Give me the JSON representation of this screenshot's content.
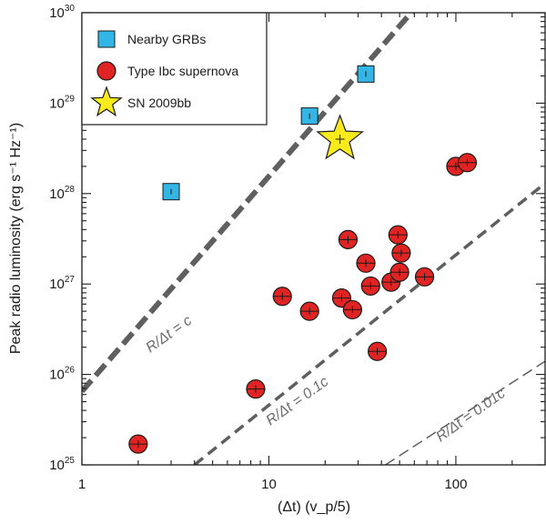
{
  "chart_data": {
    "type": "scatter",
    "xscale": "log",
    "yscale": "log",
    "xlim": [
      1,
      300
    ],
    "ylim": [
      1e+25,
      1e+30
    ],
    "xlabel": "(Δt) (v_p/5)",
    "ylabel": "Peak radio luminosity (erg s⁻¹ Hz⁻¹)",
    "x_ticks": [
      {
        "value": 1,
        "label": "1"
      },
      {
        "value": 10,
        "label": "10"
      },
      {
        "value": 100,
        "label": "100"
      }
    ],
    "y_ticks": [
      {
        "value": 1e+25,
        "base": "10",
        "exp": "25"
      },
      {
        "value": 1e+26,
        "base": "10",
        "exp": "26"
      },
      {
        "value": 1e+27,
        "base": "10",
        "exp": "27"
      },
      {
        "value": 1e+28,
        "base": "10",
        "exp": "28"
      },
      {
        "value": 1e+29,
        "base": "10",
        "exp": "29"
      },
      {
        "value": 1e+30,
        "base": "10",
        "exp": "30"
      }
    ],
    "reference_lines": [
      {
        "name": "R/Δt = c",
        "label": "R/Δt = c",
        "x": [
          1,
          60
        ],
        "y": [
          6.5e+25,
          1.1e+30
        ],
        "style": "bold-dashed"
      },
      {
        "name": "R/Δt = 0.1c",
        "label": "R/Δt = 0.1c",
        "x": [
          4.0,
          300
        ],
        "y": [
          1e+25,
          1.3e+28
        ],
        "style": "dashed"
      },
      {
        "name": "R/Δt = 0.01c",
        "label": "R/Δt = 0.01c",
        "x": [
          42,
          300
        ],
        "y": [
          1e+25,
          1.4e+26
        ],
        "style": "thin-dashed"
      }
    ],
    "series": [
      {
        "name": "Nearby GRBs",
        "marker": "square",
        "color": "#33b5e5",
        "points": [
          {
            "x": 3.0,
            "y": 1.05e+28
          },
          {
            "x": 16.5,
            "y": 7.2e+28
          },
          {
            "x": 33,
            "y": 2.1e+29
          }
        ]
      },
      {
        "name": "Type Ibc supernova",
        "marker": "circle",
        "color": "#e02424",
        "points": [
          {
            "x": 2.0,
            "y": 1.7e+25
          },
          {
            "x": 8.5,
            "y": 6.9e+25
          },
          {
            "x": 11.8,
            "y": 7.3e+26
          },
          {
            "x": 16.5,
            "y": 5e+26
          },
          {
            "x": 24.5,
            "y": 7e+26
          },
          {
            "x": 26.5,
            "y": 3.1e+27
          },
          {
            "x": 28,
            "y": 5.2e+26
          },
          {
            "x": 33,
            "y": 1.7e+27
          },
          {
            "x": 35,
            "y": 9.5e+26
          },
          {
            "x": 38,
            "y": 1.8e+26
          },
          {
            "x": 45,
            "y": 1.05e+27
          },
          {
            "x": 49,
            "y": 3.5e+27
          },
          {
            "x": 51,
            "y": 2.2e+27
          },
          {
            "x": 50,
            "y": 1.35e+27
          },
          {
            "x": 68,
            "y": 1.2e+27
          },
          {
            "x": 100,
            "y": 2e+28
          },
          {
            "x": 115,
            "y": 2.2e+28
          }
        ]
      },
      {
        "name": "SN 2009bb",
        "marker": "star",
        "color": "#f8ea1c",
        "points": [
          {
            "x": 24,
            "y": 4e+28
          }
        ]
      }
    ],
    "legend": {
      "placement": "top-left",
      "entries": [
        "Nearby GRBs",
        "Type Ibc supernova",
        "SN 2009bb"
      ]
    }
  }
}
